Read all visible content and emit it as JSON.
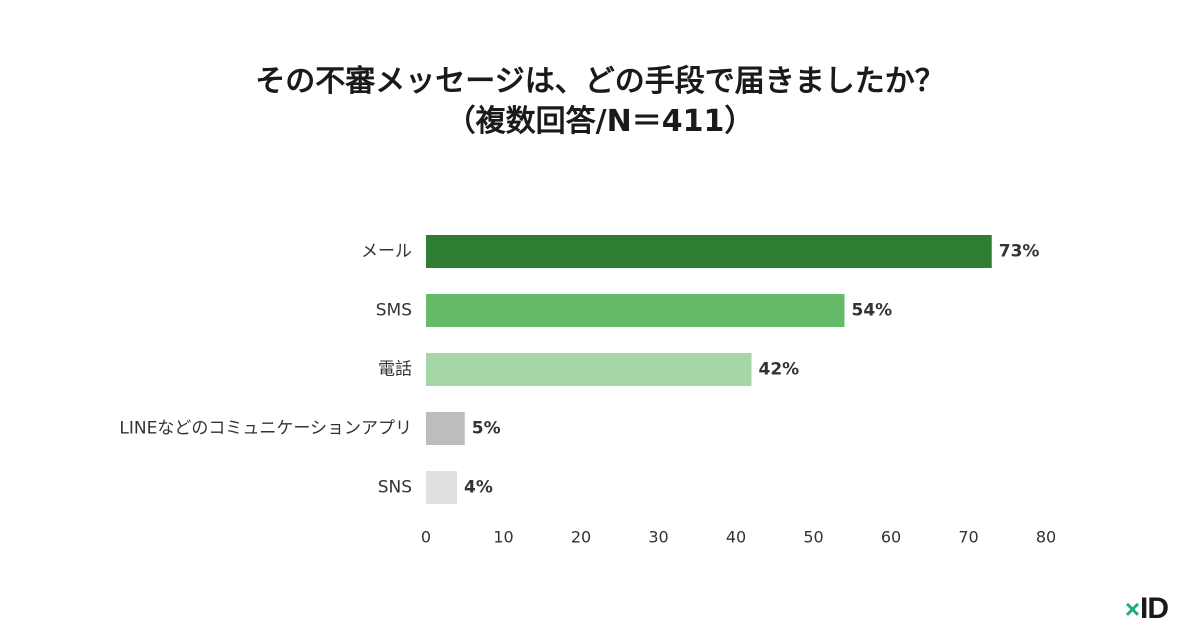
{
  "title": {
    "line1": "その不審メッセージは、どの手段で届きましたか？",
    "line2": "（複数回答/N＝411）"
  },
  "chart_data": {
    "type": "bar",
    "orientation": "horizontal",
    "categories": [
      "メール",
      "SMS",
      "電話",
      "LINEなどのコミュニケーションアプリ",
      "SNS"
    ],
    "values": [
      73,
      54,
      42,
      5,
      4
    ],
    "value_labels": [
      "73%",
      "54%",
      "42%",
      "5%",
      "4%"
    ],
    "colors": [
      "#2e7d32",
      "#66bb6a",
      "#a5d6a7",
      "#bdbdbd",
      "#e0e0e0"
    ],
    "xlim": [
      0,
      80
    ],
    "xticks": [
      0,
      10,
      20,
      30,
      40,
      50,
      60,
      70,
      80
    ],
    "xtick_labels": [
      "0",
      "10",
      "20",
      "30",
      "40",
      "50",
      "60",
      "70",
      "80"
    ],
    "grid": false,
    "legend": "none"
  },
  "logo": {
    "mark": "×",
    "text": "ID"
  }
}
